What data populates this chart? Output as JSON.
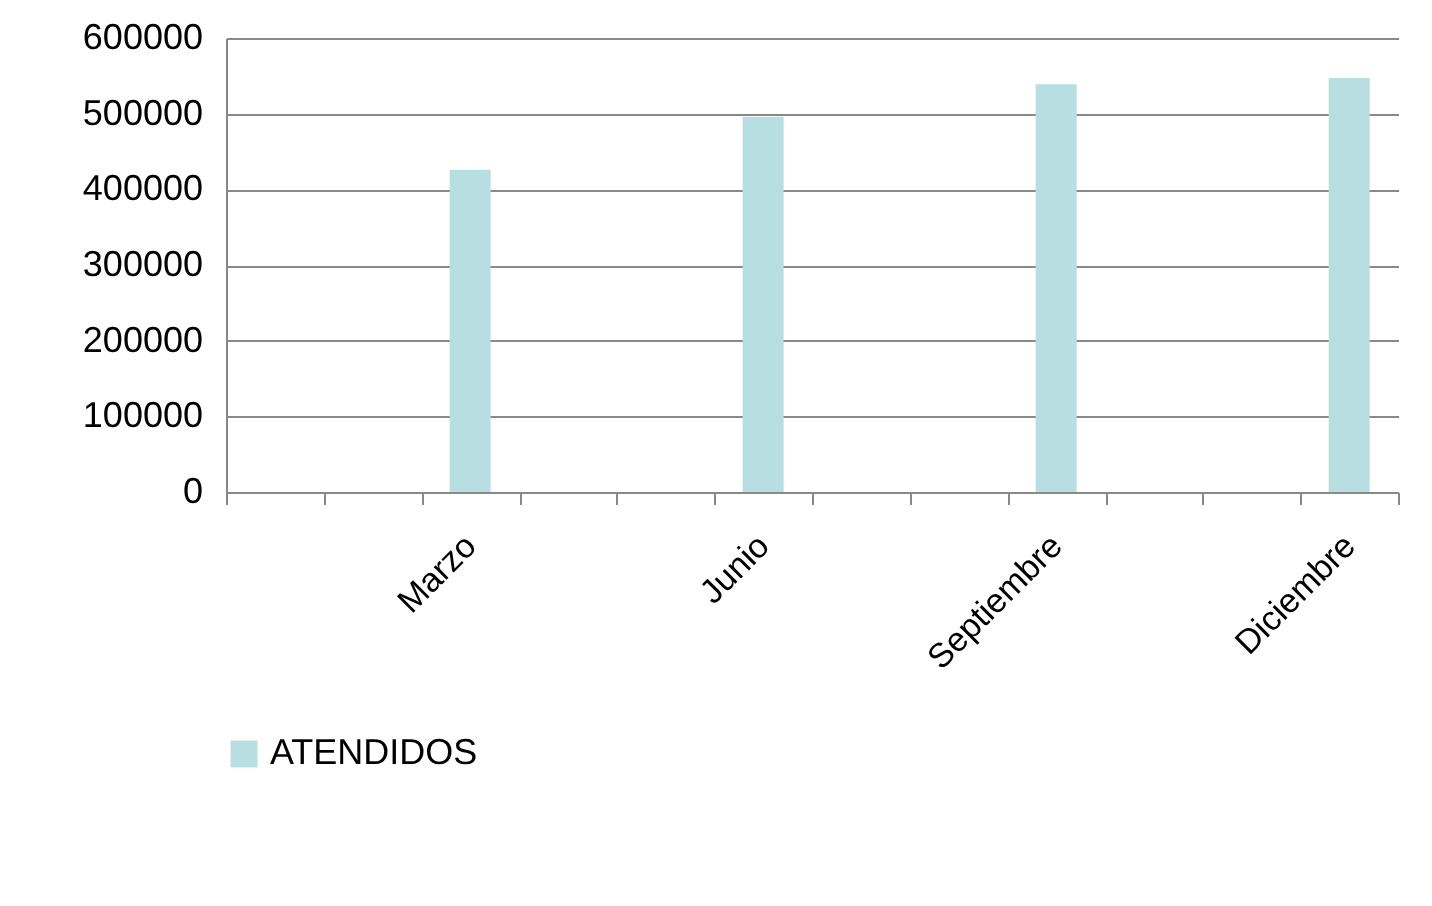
{
  "chart_data": {
    "type": "bar",
    "categories": [
      null,
      null,
      "Marzo",
      null,
      null,
      "Junio",
      null,
      null,
      "Septiembre",
      null,
      null,
      "Diciembre"
    ],
    "series": [
      {
        "name": "ATENDIDOS",
        "color": "#b7dee1",
        "values": [
          null,
          null,
          426000,
          null,
          null,
          496000,
          null,
          null,
          539000,
          null,
          null,
          547000
        ]
      }
    ],
    "ylim": [
      0,
      600000
    ],
    "yticks": [
      0,
      100000,
      200000,
      300000,
      400000,
      500000,
      600000
    ],
    "grid": "y",
    "legend": "bottom"
  }
}
